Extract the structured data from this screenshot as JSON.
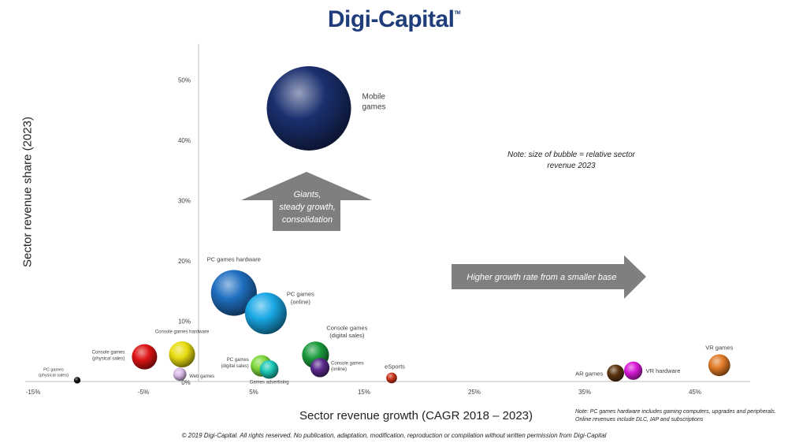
{
  "brand": {
    "name": "Digi-Capital",
    "tm": "TM"
  },
  "annotations": {
    "giants": "Giants,\nsteady growth,\nconsolidation",
    "higher_growth": "Higher growth rate from a smaller base",
    "bubble_note": "Note: size of bubble = relative sector revenue 2023",
    "footnote": "Note: PC games hardware includes gaming computers, upgrades and peripherals. Online revenues include DLC, IAP and subscriptions",
    "copyright": "© 2019 Digi-Capital. All rights reserved. No publication, adaptation, modification, reproduction or compilation without written permission from Digi-Capital"
  },
  "chart_data": {
    "type": "scatter",
    "xlabel": "Sector revenue growth (CAGR 2018 – 2023)",
    "ylabel": "Sector revenue share (2023)",
    "x_ticks": [
      "-15%",
      "-5%",
      "5%",
      "15%",
      "25%",
      "35%",
      "45%"
    ],
    "x_tick_values": [
      -15,
      -5,
      5,
      15,
      25,
      35,
      45
    ],
    "y_ticks": [
      "10%",
      "20%",
      "30%",
      "40%",
      "50%"
    ],
    "y_tick_values": [
      10,
      20,
      30,
      40,
      50
    ],
    "origin_label": "0%",
    "xlim": [
      -15,
      50
    ],
    "ylim": [
      0,
      56
    ],
    "bubbles": [
      {
        "name": "Mobile games",
        "x": 10,
        "y": 45.3,
        "size": 49.0,
        "color": "#1a2f6e"
      },
      {
        "name": "PC games hardware",
        "x": 3.2,
        "y": 14.7,
        "size": 14.5,
        "color": "#1f6fc0"
      },
      {
        "name": "PC games (online)",
        "x": 6.1,
        "y": 11.3,
        "size": 12.0,
        "color": "#19a8e6"
      },
      {
        "name": "Console games (digital sales)",
        "x": 10.6,
        "y": 4.4,
        "size": 5.0,
        "color": "#1a9a3c"
      },
      {
        "name": "Console games hardware",
        "x": -1.5,
        "y": 4.5,
        "size": 4.7,
        "color": "#e8dc10"
      },
      {
        "name": "Console games (physical sales)",
        "x": -4.9,
        "y": 4.1,
        "size": 4.4,
        "color": "#dd1414"
      },
      {
        "name": "PC games (digital sales)",
        "x": 5.7,
        "y": 2.6,
        "size": 3.2,
        "color": "#7dd63a"
      },
      {
        "name": "Games advertising",
        "x": 6.4,
        "y": 2.0,
        "size": 2.4,
        "color": "#1cc7b6"
      },
      {
        "name": "Console games (online)",
        "x": 11.0,
        "y": 2.3,
        "size": 2.5,
        "color": "#5a2a8c"
      },
      {
        "name": "Web games",
        "x": -1.7,
        "y": 1.2,
        "size": 1.2,
        "color": "#d9b8e6"
      },
      {
        "name": "PC games (physical sales)",
        "x": -11,
        "y": 0.2,
        "size": 0.3,
        "color": "#111111"
      },
      {
        "name": "eSports",
        "x": 17.5,
        "y": 0.6,
        "size": 0.8,
        "color": "#c8361a"
      },
      {
        "name": "AR games",
        "x": 37.8,
        "y": 1.4,
        "size": 2.0,
        "color": "#5a3410"
      },
      {
        "name": "VR hardware",
        "x": 39.4,
        "y": 1.8,
        "size": 2.3,
        "color": "#d81ad8"
      },
      {
        "name": "VR games",
        "x": 47.2,
        "y": 2.7,
        "size": 3.3,
        "color": "#e07a26"
      }
    ]
  }
}
